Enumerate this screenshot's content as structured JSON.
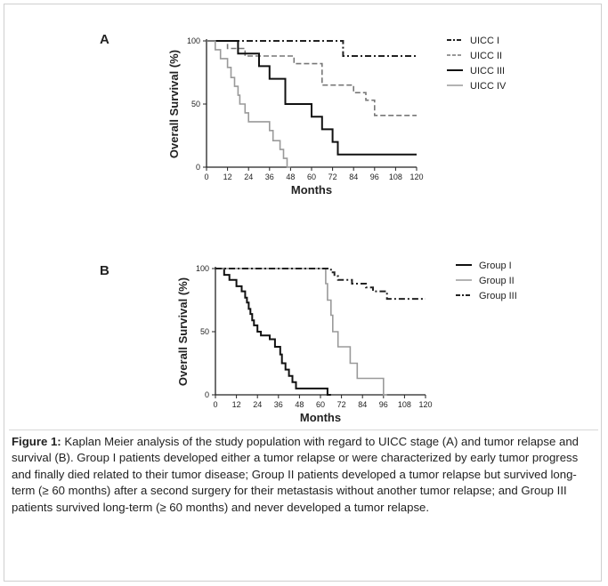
{
  "panels": [
    {
      "letter": "A"
    },
    {
      "letter": "B"
    }
  ],
  "caption": {
    "label": "Figure 1:",
    "text": "Kaplan Meier analysis of the study population with regard to UICC stage (A) and tumor relapse and survival (B). Group I patients developed either a tumor relapse or were characterized by early tumor progress and finally died related to their tumor disease; Group II patients developed a tumor relapse but survived long-term (≥ 60 months) after a second surgery for their metastasis without another tumor relapse; and Group III patients survived long-term (≥ 60 months) and never developed a tumor relapse."
  },
  "chart_data": [
    {
      "type": "line",
      "step": true,
      "xlabel": "Months",
      "ylabel": "Overall Survival (%)",
      "xlim": [
        0,
        120
      ],
      "ylim": [
        0,
        100
      ],
      "xticks": [
        0,
        12,
        24,
        36,
        48,
        60,
        72,
        84,
        96,
        108,
        120
      ],
      "yticks": [
        0,
        50,
        100
      ],
      "legend_position": "right",
      "series": [
        {
          "name": "UICC I",
          "style": "dashdot",
          "color": "#222222",
          "width": 2,
          "points": [
            [
              0,
              100
            ],
            [
              78,
              100
            ],
            [
              78,
              88
            ],
            [
              120,
              88
            ]
          ]
        },
        {
          "name": "UICC II",
          "style": "dashed",
          "color": "#777777",
          "width": 1.6,
          "points": [
            [
              0,
              100
            ],
            [
              12,
              100
            ],
            [
              12,
              94
            ],
            [
              22,
              94
            ],
            [
              22,
              88
            ],
            [
              50,
              88
            ],
            [
              50,
              82
            ],
            [
              66,
              82
            ],
            [
              66,
              65
            ],
            [
              84,
              65
            ],
            [
              84,
              59
            ],
            [
              91,
              59
            ],
            [
              91,
              53
            ],
            [
              96,
              53
            ],
            [
              96,
              41
            ],
            [
              120,
              41
            ]
          ]
        },
        {
          "name": "UICC III",
          "style": "solid",
          "color": "#111111",
          "width": 2,
          "points": [
            [
              0,
              100
            ],
            [
              18,
              100
            ],
            [
              18,
              90
            ],
            [
              30,
              90
            ],
            [
              30,
              80
            ],
            [
              36,
              80
            ],
            [
              36,
              70
            ],
            [
              45,
              70
            ],
            [
              45,
              50
            ],
            [
              60,
              50
            ],
            [
              60,
              40
            ],
            [
              66,
              40
            ],
            [
              66,
              30
            ],
            [
              72,
              30
            ],
            [
              72,
              20
            ],
            [
              75,
              20
            ],
            [
              75,
              10
            ],
            [
              120,
              10
            ]
          ]
        },
        {
          "name": "UICC IV",
          "style": "solid",
          "color": "#9a9a9a",
          "width": 1.6,
          "points": [
            [
              0,
              100
            ],
            [
              5,
              100
            ],
            [
              5,
              93
            ],
            [
              8,
              93
            ],
            [
              8,
              86
            ],
            [
              12,
              86
            ],
            [
              12,
              79
            ],
            [
              14,
              79
            ],
            [
              14,
              71
            ],
            [
              16,
              71
            ],
            [
              16,
              64
            ],
            [
              18,
              64
            ],
            [
              18,
              57
            ],
            [
              19,
              57
            ],
            [
              19,
              50
            ],
            [
              22,
              50
            ],
            [
              22,
              43
            ],
            [
              24,
              43
            ],
            [
              24,
              36
            ],
            [
              36,
              36
            ],
            [
              36,
              29
            ],
            [
              38,
              29
            ],
            [
              38,
              21
            ],
            [
              42,
              21
            ],
            [
              42,
              14
            ],
            [
              44,
              14
            ],
            [
              44,
              7
            ],
            [
              46,
              7
            ],
            [
              46,
              0
            ],
            [
              48,
              0
            ]
          ]
        }
      ]
    },
    {
      "type": "line",
      "step": true,
      "xlabel": "Months",
      "ylabel": "Overall Survival (%)",
      "xlim": [
        0,
        120
      ],
      "ylim": [
        0,
        100
      ],
      "xticks": [
        0,
        12,
        24,
        36,
        48,
        60,
        72,
        84,
        96,
        108,
        120
      ],
      "yticks": [
        0,
        50,
        100
      ],
      "legend_position": "right",
      "series": [
        {
          "name": "Group I",
          "style": "solid",
          "color": "#111111",
          "width": 2,
          "points": [
            [
              0,
              100
            ],
            [
              5,
              100
            ],
            [
              5,
              95
            ],
            [
              8,
              95
            ],
            [
              8,
              91
            ],
            [
              12,
              91
            ],
            [
              12,
              86
            ],
            [
              15,
              86
            ],
            [
              15,
              82
            ],
            [
              17,
              82
            ],
            [
              17,
              77
            ],
            [
              18,
              77
            ],
            [
              18,
              73
            ],
            [
              19,
              73
            ],
            [
              19,
              68
            ],
            [
              20,
              68
            ],
            [
              20,
              64
            ],
            [
              21,
              64
            ],
            [
              21,
              59
            ],
            [
              22,
              59
            ],
            [
              22,
              55
            ],
            [
              24,
              55
            ],
            [
              24,
              50
            ],
            [
              26,
              50
            ],
            [
              26,
              47
            ],
            [
              31,
              47
            ],
            [
              31,
              44
            ],
            [
              34,
              44
            ],
            [
              34,
              38
            ],
            [
              37,
              38
            ],
            [
              37,
              32
            ],
            [
              38,
              32
            ],
            [
              38,
              25
            ],
            [
              40,
              25
            ],
            [
              40,
              20
            ],
            [
              42,
              20
            ],
            [
              42,
              15
            ],
            [
              44,
              15
            ],
            [
              44,
              10
            ],
            [
              46,
              10
            ],
            [
              46,
              5
            ],
            [
              64,
              5
            ],
            [
              64,
              0
            ],
            [
              66,
              0
            ]
          ]
        },
        {
          "name": "Group II",
          "style": "solid",
          "color": "#9a9a9a",
          "width": 1.6,
          "points": [
            [
              0,
              100
            ],
            [
              63,
              100
            ],
            [
              63,
              88
            ],
            [
              64,
              88
            ],
            [
              64,
              75
            ],
            [
              66,
              75
            ],
            [
              66,
              63
            ],
            [
              67,
              63
            ],
            [
              67,
              50
            ],
            [
              70,
              50
            ],
            [
              70,
              38
            ],
            [
              77,
              38
            ],
            [
              77,
              25
            ],
            [
              81,
              25
            ],
            [
              81,
              13
            ],
            [
              96,
              13
            ],
            [
              96,
              0
            ],
            [
              98,
              0
            ]
          ]
        },
        {
          "name": "Group III",
          "style": "dashdot",
          "color": "#222222",
          "width": 2,
          "points": [
            [
              0,
              100
            ],
            [
              66,
              100
            ],
            [
              66,
              97
            ],
            [
              68,
              97
            ],
            [
              68,
              94
            ],
            [
              70,
              94
            ],
            [
              70,
              91
            ],
            [
              78,
              91
            ],
            [
              78,
              88
            ],
            [
              86,
              88
            ],
            [
              86,
              85
            ],
            [
              90,
              85
            ],
            [
              90,
              82
            ],
            [
              98,
              82
            ],
            [
              98,
              76
            ],
            [
              120,
              76
            ]
          ]
        }
      ]
    }
  ]
}
